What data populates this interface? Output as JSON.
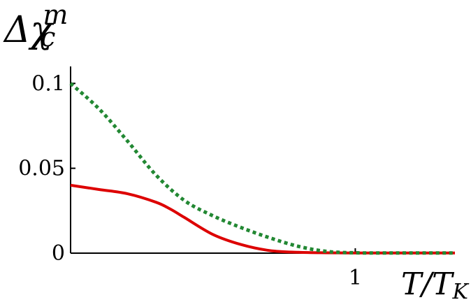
{
  "chart_data": {
    "type": "line",
    "title": "",
    "ylabel": {
      "base": "Δχ",
      "subscript": "c",
      "superscript": "m"
    },
    "xlabel": {
      "base": "T/T",
      "subscript": "K"
    },
    "xlim": [
      0,
      1.35
    ],
    "ylim": [
      0,
      0.11
    ],
    "x_ticks": [
      {
        "value": 1,
        "label": "1"
      }
    ],
    "y_ticks": [
      {
        "value": 0,
        "label": "0"
      },
      {
        "value": 0.05,
        "label": "0.05"
      },
      {
        "value": 0.1,
        "label": "0.1"
      }
    ],
    "grid": false,
    "legend": "none",
    "series": [
      {
        "color": "#dd0000",
        "style": "solid",
        "x": [
          0,
          0.1,
          0.2,
          0.3,
          0.35,
          0.4,
          0.5,
          0.6,
          0.7,
          0.8,
          0.9,
          1.0,
          1.1,
          1.2,
          1.35
        ],
        "y": [
          0.04,
          0.0375,
          0.035,
          0.03,
          0.026,
          0.021,
          0.011,
          0.005,
          0.0015,
          0.0005,
          0.0002,
          0.0001,
          0.0001,
          0.0001,
          0.0001
        ]
      },
      {
        "color": "#228833",
        "style": "dotted",
        "x": [
          0,
          0.1,
          0.2,
          0.3,
          0.4,
          0.5,
          0.6,
          0.7,
          0.8,
          0.9,
          1.0,
          1.1,
          1.2,
          1.35
        ],
        "y": [
          0.1,
          0.085,
          0.066,
          0.046,
          0.031,
          0.022,
          0.015,
          0.009,
          0.004,
          0.001,
          0.0002,
          0.0001,
          0.0001,
          0.0001
        ]
      }
    ]
  }
}
